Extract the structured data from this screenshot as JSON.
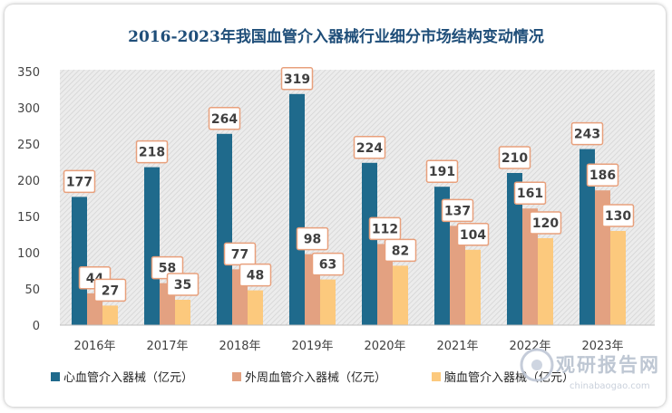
{
  "chart_data": {
    "type": "bar",
    "title": "2016-2023年我国血管介入器械行业细分市场结构变动情况",
    "categories": [
      "2016年",
      "2017年",
      "2018年",
      "2019年",
      "2020年",
      "2021年",
      "2022年",
      "2023年"
    ],
    "series": [
      {
        "name": "心血管介入器械（亿元）",
        "values": [
          177,
          218,
          264,
          319,
          224,
          191,
          210,
          243
        ],
        "color": "#1f6a8c"
      },
      {
        "name": "外周血管介入器械（亿元）",
        "values": [
          44,
          58,
          77,
          98,
          112,
          137,
          161,
          186
        ],
        "color": "#e3a181"
      },
      {
        "name": "脑血管介入器械（亿元）",
        "values": [
          27,
          35,
          48,
          63,
          82,
          104,
          120,
          130
        ],
        "color": "#fcc97d"
      }
    ],
    "yticks": [
      0,
      50,
      100,
      150,
      200,
      250,
      300,
      350
    ],
    "ylim": [
      0,
      350
    ],
    "grid": false,
    "legend_position": "bottom-left",
    "plot_background": "hatched-gray"
  },
  "watermark": {
    "text": "观研报告网",
    "url": "chinabaogao.com"
  }
}
